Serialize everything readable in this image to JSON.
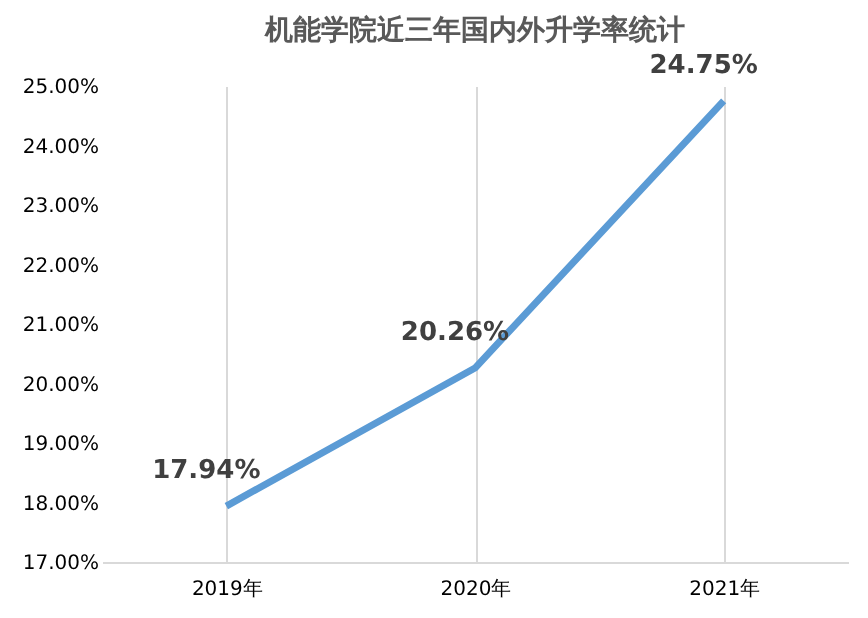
{
  "chart_data": {
    "type": "line",
    "title": "机能学院近三年国内外升学率统计",
    "categories": [
      "2019年",
      "2020年",
      "2021年"
    ],
    "series": [
      {
        "color": "#5b9bd5",
        "values": [
          17.94,
          20.26,
          24.75
        ],
        "value_labels": [
          "17.94%",
          "20.26%",
          "24.75%"
        ]
      }
    ],
    "ylim": [
      17,
      25
    ],
    "yticks": [
      {
        "value": 17,
        "label": "17.00%"
      },
      {
        "value": 18,
        "label": "18.00%"
      },
      {
        "value": 19,
        "label": "19.00%"
      },
      {
        "value": 20,
        "label": "20.00%"
      },
      {
        "value": 21,
        "label": "21.00%"
      },
      {
        "value": 22,
        "label": "22.00%"
      },
      {
        "value": 23,
        "label": "23.00%"
      },
      {
        "value": 24,
        "label": "24.00%"
      },
      {
        "value": 25,
        "label": "25.00%"
      }
    ],
    "grid": "x",
    "marker": "none",
    "line_style": "solid"
  }
}
